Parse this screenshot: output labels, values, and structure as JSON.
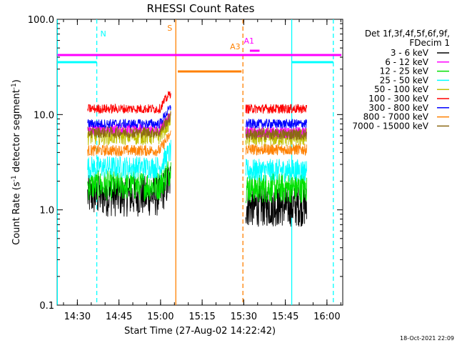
{
  "chart_data": {
    "type": "line",
    "title": "RHESSI Count Rates",
    "xlabel": "Start Time (27-Aug-02 14:22:42)",
    "ylabel_main": "Count Rate (s",
    "ylabel_sup1": "-1",
    "ylabel_mid": " detector segment",
    "ylabel_sup2": "-1",
    "ylabel_end": ")",
    "y_scale": "log",
    "ylim": [
      0.1,
      100.0
    ],
    "y_ticks": [
      {
        "value": 100.0,
        "label": "100.0"
      },
      {
        "value": 10.0,
        "label": "10.0"
      },
      {
        "value": 1.0,
        "label": "1.0"
      },
      {
        "value": 0.1,
        "label": "0.1"
      }
    ],
    "x_unit": "minutes after 14:22:42",
    "xlim": [
      0,
      103
    ],
    "x_ticks": [
      {
        "value": 7.3,
        "label": "14:30"
      },
      {
        "value": 22.3,
        "label": "14:45"
      },
      {
        "value": 37.3,
        "label": "15:00"
      },
      {
        "value": 52.3,
        "label": "15:15"
      },
      {
        "value": 67.3,
        "label": "15:30"
      },
      {
        "value": 82.3,
        "label": "15:45"
      },
      {
        "value": 97.3,
        "label": "16:00"
      }
    ],
    "legend": {
      "position": "right",
      "header": [
        "Det 1f,3f,4f,5f,6f,9f,",
        "FDecim 1"
      ],
      "entries": [
        {
          "label": "3 - 6 keV",
          "color": "#000000"
        },
        {
          "label": "6 - 12 keV",
          "color": "#ff00ff"
        },
        {
          "label": "12 - 25 keV",
          "color": "#00e000"
        },
        {
          "label": "25 - 50 keV",
          "color": "#00ffff"
        },
        {
          "label": "50 - 100 keV",
          "color": "#c0c000"
        },
        {
          "label": "100 - 300 keV",
          "color": "#ff0000"
        },
        {
          "label": "300 - 800 keV",
          "color": "#0000ff"
        },
        {
          "label": "800 - 7000 keV",
          "color": "#ff8000"
        },
        {
          "label": "7000 - 15000 keV",
          "color": "#8b6914"
        }
      ]
    },
    "segments": [
      [
        11,
        41
      ],
      [
        68,
        90
      ]
    ],
    "series": [
      {
        "name": "3 - 6 keV",
        "color": "#000000",
        "level1": 1.4,
        "level2": 1.1,
        "noise": 0.22
      },
      {
        "name": "6 - 12 keV",
        "color": "#ff00ff",
        "level1": 7.0,
        "level2": 6.5,
        "noise": 0.06
      },
      {
        "name": "12 - 25 keV",
        "color": "#00e000",
        "level1": 1.8,
        "level2": 1.7,
        "noise": 0.16
      },
      {
        "name": "25 - 50 keV",
        "color": "#00ffff",
        "level1": 2.8,
        "level2": 2.6,
        "noise": 0.12
      },
      {
        "name": "50 - 100 keV",
        "color": "#c0c000",
        "level1": 6.0,
        "level2": 5.8,
        "noise": 0.1
      },
      {
        "name": "100 - 300 keV",
        "color": "#ff0000",
        "level1": 11.5,
        "level2": 11.5,
        "noise": 0.05
      },
      {
        "name": "300 - 800 keV",
        "color": "#0000ff",
        "level1": 8.0,
        "level2": 8.0,
        "noise": 0.05
      },
      {
        "name": "800 - 7000 keV",
        "color": "#ff8000",
        "level1": 4.2,
        "level2": 4.3,
        "noise": 0.06
      },
      {
        "name": "7000 - 15000 keV",
        "color": "#8b6914",
        "level1": 6.5,
        "level2": 6.2,
        "noise": 0.06
      }
    ],
    "interval_markers": [
      {
        "label": "N",
        "color": "#00ffff",
        "style": "dashed",
        "x": 14.3
      },
      {
        "label": "",
        "color": "#00ffff",
        "style": "solid",
        "x": 0.1
      },
      {
        "label": "",
        "color": "#00ffff",
        "style": "solid",
        "x": 84.6
      },
      {
        "label": "",
        "color": "#00ffff",
        "style": "dashed",
        "x": 99.6
      },
      {
        "label": "S",
        "color": "#ff8000",
        "style": "solid",
        "x": 42.8
      },
      {
        "label": "",
        "color": "#ff8000",
        "style": "dashed",
        "x": 67.0
      },
      {
        "label": "A3",
        "color": "#ff8000",
        "style": "label",
        "x": 65.5
      },
      {
        "label": "A1",
        "color": "#ff00ff",
        "style": "label",
        "x": 70.5
      }
    ],
    "bars": [
      {
        "name": "N-left",
        "color": "#00ffff",
        "x0": 0.1,
        "x1": 14.3,
        "y": 67
      },
      {
        "name": "N-right",
        "color": "#00ffff",
        "x0": 84.6,
        "x1": 99.6,
        "y": 67
      },
      {
        "name": "S",
        "color": "#ff8000",
        "x0": 43.5,
        "x1": 66.5,
        "y": 80
      },
      {
        "name": "A1-line",
        "color": "#ff00ff",
        "x0": 0.1,
        "x1": 102.5,
        "y": 57
      },
      {
        "name": "A1-short",
        "color": "#ff00ff",
        "x0": 69.5,
        "x1": 73.0,
        "y": 51
      }
    ],
    "footer_timestamp": "18-Oct-2021 22:09"
  }
}
